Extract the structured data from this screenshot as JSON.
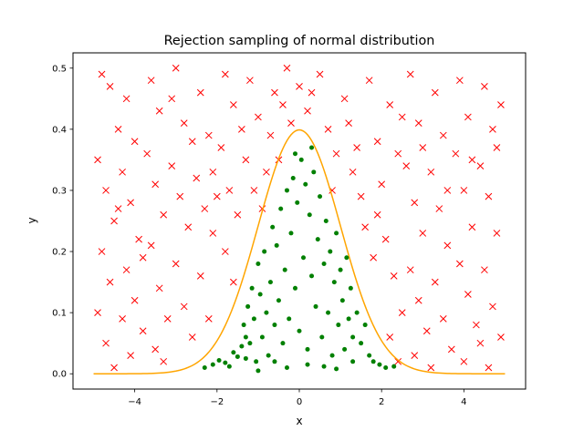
{
  "chart_data": {
    "type": "scatter",
    "title": "Rejection sampling of normal distribution",
    "xlabel": "x",
    "ylabel": "y",
    "xlim": [
      -5.5,
      5.5
    ],
    "ylim": [
      -0.025,
      0.525
    ],
    "x_ticks": [
      -4,
      -2,
      0,
      2,
      4
    ],
    "x_tick_labels": [
      "−4",
      "−2",
      "0",
      "2",
      "4"
    ],
    "y_ticks": [
      0.0,
      0.1,
      0.2,
      0.3,
      0.4,
      0.5
    ],
    "y_tick_labels": [
      "0.0",
      "0.1",
      "0.2",
      "0.3",
      "0.4",
      "0.5"
    ],
    "grid": false,
    "legend": "none",
    "colors": {
      "curve": "#ffa500",
      "accepted": "#008000",
      "rejected": "#ff0000"
    },
    "curve": {
      "function": "standard normal pdf",
      "x_range": [
        -5,
        5
      ],
      "peak": [
        0,
        0.399
      ]
    },
    "accepted_points": [
      [
        -2.3,
        0.01
      ],
      [
        -2.1,
        0.015
      ],
      [
        -1.95,
        0.022
      ],
      [
        -1.8,
        0.018
      ],
      [
        -1.7,
        0.012
      ],
      [
        -1.6,
        0.035
      ],
      [
        -1.5,
        0.028
      ],
      [
        -1.4,
        0.045
      ],
      [
        -1.35,
        0.08
      ],
      [
        -1.3,
        0.06
      ],
      [
        -1.25,
        0.11
      ],
      [
        -1.2,
        0.05
      ],
      [
        -1.15,
        0.14
      ],
      [
        -1.1,
        0.09
      ],
      [
        -1.05,
        0.02
      ],
      [
        -1.0,
        0.18
      ],
      [
        -0.95,
        0.13
      ],
      [
        -0.9,
        0.06
      ],
      [
        -0.85,
        0.2
      ],
      [
        -0.8,
        0.1
      ],
      [
        -0.75,
        0.03
      ],
      [
        -0.7,
        0.15
      ],
      [
        -0.65,
        0.24
      ],
      [
        -0.6,
        0.08
      ],
      [
        -0.55,
        0.21
      ],
      [
        -0.5,
        0.12
      ],
      [
        -0.45,
        0.27
      ],
      [
        -0.4,
        0.05
      ],
      [
        -0.35,
        0.17
      ],
      [
        -0.3,
        0.3
      ],
      [
        -0.25,
        0.09
      ],
      [
        -0.2,
        0.23
      ],
      [
        -0.15,
        0.32
      ],
      [
        -0.1,
        0.14
      ],
      [
        -0.05,
        0.28
      ],
      [
        0.0,
        0.07
      ],
      [
        0.05,
        0.35
      ],
      [
        0.1,
        0.19
      ],
      [
        0.15,
        0.31
      ],
      [
        0.2,
        0.04
      ],
      [
        0.25,
        0.26
      ],
      [
        0.3,
        0.16
      ],
      [
        0.35,
        0.33
      ],
      [
        0.4,
        0.11
      ],
      [
        0.45,
        0.22
      ],
      [
        0.5,
        0.29
      ],
      [
        0.55,
        0.06
      ],
      [
        0.6,
        0.18
      ],
      [
        0.65,
        0.25
      ],
      [
        0.7,
        0.1
      ],
      [
        0.75,
        0.2
      ],
      [
        0.8,
        0.03
      ],
      [
        0.85,
        0.15
      ],
      [
        0.9,
        0.23
      ],
      [
        0.95,
        0.08
      ],
      [
        1.0,
        0.17
      ],
      [
        1.05,
        0.12
      ],
      [
        1.1,
        0.04
      ],
      [
        1.15,
        0.19
      ],
      [
        1.2,
        0.09
      ],
      [
        1.25,
        0.14
      ],
      [
        1.3,
        0.06
      ],
      [
        1.4,
        0.1
      ],
      [
        1.5,
        0.05
      ],
      [
        1.6,
        0.08
      ],
      [
        1.7,
        0.03
      ],
      [
        1.8,
        0.02
      ],
      [
        1.95,
        0.015
      ],
      [
        2.1,
        0.01
      ],
      [
        2.3,
        0.012
      ],
      [
        -0.6,
        0.02
      ],
      [
        -0.3,
        0.01
      ],
      [
        0.2,
        0.015
      ],
      [
        0.6,
        0.012
      ],
      [
        -1.0,
        0.005
      ],
      [
        0.9,
        0.008
      ],
      [
        1.3,
        0.02
      ],
      [
        -1.3,
        0.025
      ],
      [
        -0.1,
        0.36
      ],
      [
        0.3,
        0.37
      ]
    ],
    "rejected_points": [
      [
        -4.8,
        0.49
      ],
      [
        -4.6,
        0.47
      ],
      [
        -4.4,
        0.4
      ],
      [
        -4.9,
        0.35
      ],
      [
        -4.7,
        0.3
      ],
      [
        -4.5,
        0.25
      ],
      [
        -4.8,
        0.2
      ],
      [
        -4.6,
        0.15
      ],
      [
        -4.9,
        0.1
      ],
      [
        -4.7,
        0.05
      ],
      [
        -4.5,
        0.01
      ],
      [
        -4.2,
        0.45
      ],
      [
        -4.0,
        0.38
      ],
      [
        -4.3,
        0.33
      ],
      [
        -4.1,
        0.28
      ],
      [
        -3.9,
        0.22
      ],
      [
        -4.2,
        0.17
      ],
      [
        -4.0,
        0.12
      ],
      [
        -3.8,
        0.07
      ],
      [
        -4.1,
        0.03
      ],
      [
        -3.6,
        0.48
      ],
      [
        -3.4,
        0.43
      ],
      [
        -3.7,
        0.36
      ],
      [
        -3.5,
        0.31
      ],
      [
        -3.3,
        0.26
      ],
      [
        -3.6,
        0.21
      ],
      [
        -3.4,
        0.14
      ],
      [
        -3.2,
        0.09
      ],
      [
        -3.5,
        0.04
      ],
      [
        -3.0,
        0.5
      ],
      [
        -2.8,
        0.41
      ],
      [
        -3.1,
        0.34
      ],
      [
        -2.9,
        0.29
      ],
      [
        -2.7,
        0.24
      ],
      [
        -3.0,
        0.18
      ],
      [
        -2.8,
        0.11
      ],
      [
        -2.6,
        0.06
      ],
      [
        -2.4,
        0.46
      ],
      [
        -2.2,
        0.39
      ],
      [
        -2.5,
        0.32
      ],
      [
        -2.3,
        0.27
      ],
      [
        -2.1,
        0.23
      ],
      [
        -2.4,
        0.16
      ],
      [
        -2.2,
        0.09
      ],
      [
        -1.8,
        0.49
      ],
      [
        -1.6,
        0.44
      ],
      [
        -1.9,
        0.37
      ],
      [
        -1.7,
        0.3
      ],
      [
        -1.5,
        0.26
      ],
      [
        -1.8,
        0.2
      ],
      [
        -1.6,
        0.15
      ],
      [
        -1.2,
        0.48
      ],
      [
        -1.0,
        0.42
      ],
      [
        -1.3,
        0.35
      ],
      [
        -1.1,
        0.3
      ],
      [
        -0.9,
        0.27
      ],
      [
        -0.6,
        0.46
      ],
      [
        -0.4,
        0.44
      ],
      [
        -0.7,
        0.39
      ],
      [
        -0.5,
        0.35
      ],
      [
        0.0,
        0.47
      ],
      [
        0.2,
        0.43
      ],
      [
        -0.2,
        0.41
      ],
      [
        0.5,
        0.49
      ],
      [
        0.7,
        0.4
      ],
      [
        0.9,
        0.36
      ],
      [
        1.1,
        0.45
      ],
      [
        1.3,
        0.33
      ],
      [
        1.5,
        0.29
      ],
      [
        1.2,
        0.41
      ],
      [
        1.7,
        0.48
      ],
      [
        1.9,
        0.38
      ],
      [
        1.6,
        0.24
      ],
      [
        1.8,
        0.19
      ],
      [
        2.0,
        0.31
      ],
      [
        2.2,
        0.44
      ],
      [
        2.4,
        0.36
      ],
      [
        2.1,
        0.22
      ],
      [
        2.3,
        0.16
      ],
      [
        2.5,
        0.1
      ],
      [
        2.2,
        0.06
      ],
      [
        2.4,
        0.02
      ],
      [
        2.7,
        0.49
      ],
      [
        2.9,
        0.41
      ],
      [
        2.6,
        0.34
      ],
      [
        2.8,
        0.28
      ],
      [
        3.0,
        0.23
      ],
      [
        2.7,
        0.17
      ],
      [
        2.9,
        0.12
      ],
      [
        3.1,
        0.07
      ],
      [
        2.8,
        0.03
      ],
      [
        3.3,
        0.46
      ],
      [
        3.5,
        0.39
      ],
      [
        3.2,
        0.33
      ],
      [
        3.4,
        0.27
      ],
      [
        3.6,
        0.21
      ],
      [
        3.3,
        0.15
      ],
      [
        3.5,
        0.09
      ],
      [
        3.7,
        0.04
      ],
      [
        3.9,
        0.48
      ],
      [
        4.1,
        0.42
      ],
      [
        3.8,
        0.36
      ],
      [
        4.0,
        0.3
      ],
      [
        4.2,
        0.24
      ],
      [
        3.9,
        0.18
      ],
      [
        4.1,
        0.13
      ],
      [
        4.3,
        0.08
      ],
      [
        4.0,
        0.02
      ],
      [
        4.5,
        0.47
      ],
      [
        4.7,
        0.4
      ],
      [
        4.4,
        0.34
      ],
      [
        4.6,
        0.29
      ],
      [
        4.8,
        0.23
      ],
      [
        4.5,
        0.17
      ],
      [
        4.7,
        0.11
      ],
      [
        4.9,
        0.06
      ],
      [
        4.6,
        0.01
      ],
      [
        4.9,
        0.44
      ],
      [
        4.8,
        0.37
      ],
      [
        -4.3,
        0.09
      ],
      [
        -3.8,
        0.19
      ],
      [
        -3.1,
        0.45
      ],
      [
        -2.6,
        0.38
      ],
      [
        -2.0,
        0.29
      ],
      [
        -1.4,
        0.4
      ],
      [
        -0.8,
        0.33
      ],
      [
        -0.3,
        0.5
      ],
      [
        0.3,
        0.46
      ],
      [
        0.8,
        0.3
      ],
      [
        1.4,
        0.37
      ],
      [
        1.9,
        0.26
      ],
      [
        2.5,
        0.42
      ],
      [
        3.0,
        0.37
      ],
      [
        3.6,
        0.3
      ],
      [
        4.2,
        0.35
      ],
      [
        4.4,
        0.05
      ],
      [
        3.2,
        0.01
      ],
      [
        -3.3,
        0.02
      ],
      [
        -4.4,
        0.27
      ],
      [
        -2.1,
        0.33
      ]
    ]
  }
}
